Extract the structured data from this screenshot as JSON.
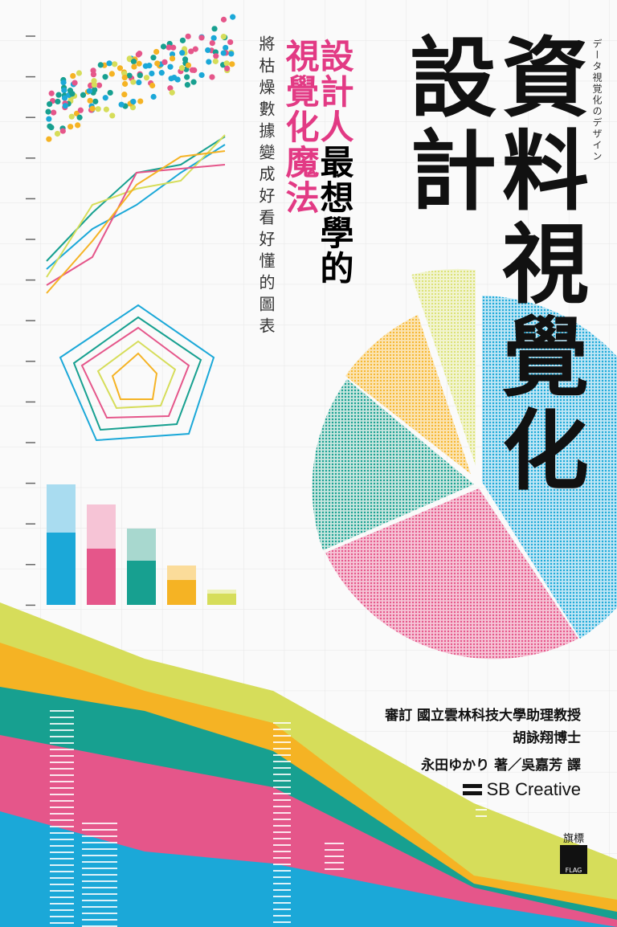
{
  "cover": {
    "title_col1": "資料視覺化",
    "title_col2": "設計",
    "japanese_title": "データ視覚化のデザイン",
    "subtitle_col1_pink": "設計人",
    "subtitle_col1_black": "最想學的",
    "subtitle_col2": "視覺化魔法",
    "tagline": "將枯燥數據變成好看好懂的圖表",
    "reviewer": "審訂 國立雲林科技大學助理教授",
    "reviewer_name": "胡詠翔博士",
    "author_translator": "永田ゆかり 著／吳嘉芳 譯",
    "publisher": "SB Creative",
    "flag_logo_cn": "旗標",
    "flag_logo_en": "FLAG"
  },
  "colors": {
    "blue": "#1ba8d8",
    "pink": "#e5568a",
    "teal": "#17a090",
    "orange": "#f5b324",
    "lime": "#d6dd5a",
    "title_pink": "#e23a84"
  }
}
